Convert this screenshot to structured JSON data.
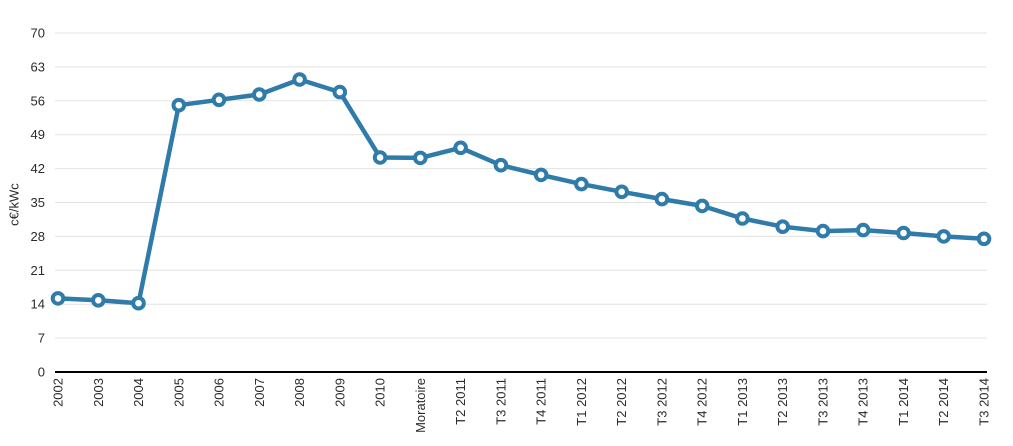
{
  "chart_data": {
    "type": "line",
    "ylabel": "c€/kWc",
    "xlabel": "",
    "ylim": [
      0,
      70
    ],
    "ytick_step": 7,
    "grid": true,
    "legend_position": "none",
    "categories": [
      "2002",
      "2003",
      "2004",
      "2005",
      "2006",
      "2007",
      "2008",
      "2009",
      "2010",
      "Moratoire",
      "T2 2011",
      "T3 2011",
      "T4 2011",
      "T1 2012",
      "T2 2012",
      "T3 2012",
      "T4 2012",
      "T1 2013",
      "T2 2013",
      "T3 2013",
      "T4 2013",
      "T1 2014",
      "T2 2014",
      "T3 2014"
    ],
    "values": [
      15.2,
      14.8,
      14.2,
      55.1,
      56.2,
      57.3,
      60.4,
      57.8,
      44.3,
      44.2,
      46.3,
      42.7,
      40.7,
      38.8,
      37.2,
      35.7,
      34.3,
      31.7,
      30.0,
      29.1,
      29.3,
      28.7,
      28.0,
      27.5
    ],
    "colors": {
      "line": "#2f7ba9",
      "marker_fill": "#ffffff",
      "gridline": "#e3e3e3",
      "axis": "#000000",
      "text": "#2b2b2b"
    }
  }
}
